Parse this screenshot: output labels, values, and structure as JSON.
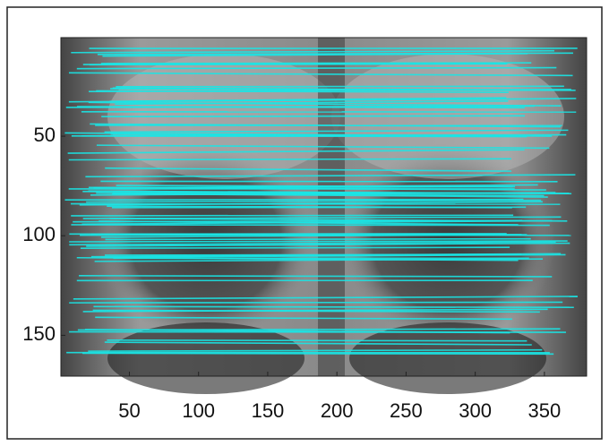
{
  "chart_data": {
    "type": "image",
    "xlim": [
      0.5,
      380.5
    ],
    "ylim": [
      0.5,
      170.5
    ],
    "y_reversed": true,
    "xticks": [
      50,
      100,
      150,
      200,
      250,
      300,
      350
    ],
    "yticks": [
      50,
      100,
      150
    ],
    "line_color": "#19e6e6"
  }
}
